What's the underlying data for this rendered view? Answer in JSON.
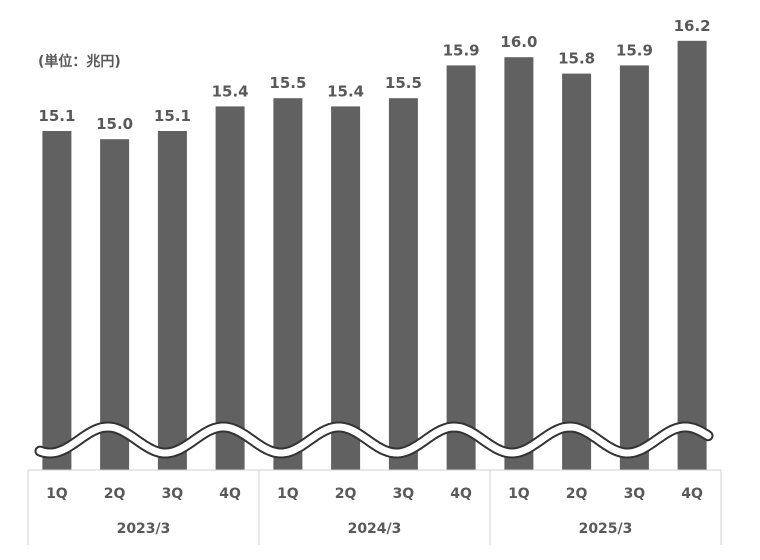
{
  "chart_data": {
    "type": "bar",
    "unit_label": "(単位：兆円)",
    "categories": [
      "1Q",
      "2Q",
      "3Q",
      "4Q",
      "1Q",
      "2Q",
      "3Q",
      "4Q",
      "1Q",
      "2Q",
      "3Q",
      "4Q"
    ],
    "groups": [
      {
        "label": "2023/3",
        "count": 4
      },
      {
        "label": "2024/3",
        "count": 4
      },
      {
        "label": "2025/3",
        "count": 4
      }
    ],
    "values": [
      15.1,
      15.0,
      15.1,
      15.4,
      15.5,
      15.4,
      15.5,
      15.9,
      16.0,
      15.8,
      15.9,
      16.2
    ],
    "data_labels": [
      "15.1",
      "15.0",
      "15.1",
      "15.4",
      "15.5",
      "15.4",
      "15.5",
      "15.9",
      "16.0",
      "15.8",
      "15.9",
      "16.2"
    ],
    "axis_break": true,
    "bar_color": "#616161"
  }
}
